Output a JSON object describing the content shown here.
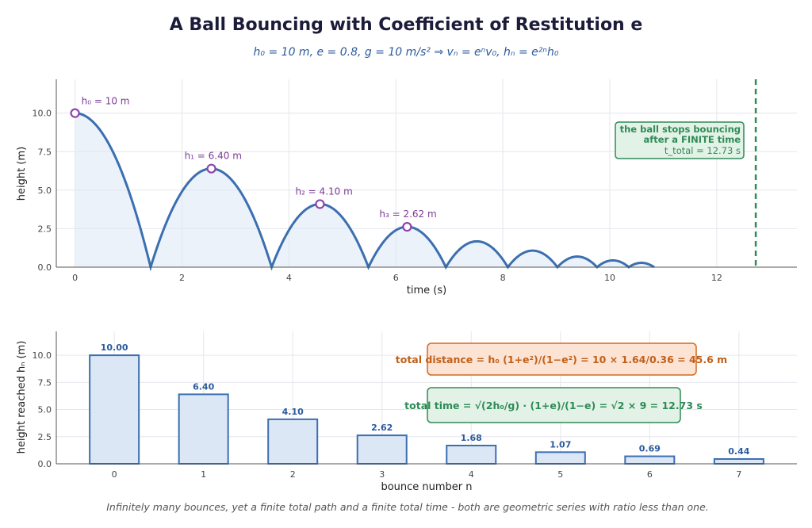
{
  "header": {
    "title": "A Ball Bouncing with Coefficient of Restitution e",
    "subtitle": "h₀ = 10 m,  e = 0.8,  g = 10 m/s²    ⇒    vₙ = eⁿv₀,   hₙ = e²ⁿh₀"
  },
  "colors": {
    "curve": "#3b6fb0",
    "fill": "#dde8f6",
    "peak": "#8e44ad",
    "green": "#2e8b57",
    "orange": "#d2691e"
  },
  "chart_data": [
    {
      "type": "line",
      "xlabel": "time  (s)",
      "ylabel": "height  (m)",
      "xlim": [
        -0.35,
        13.5
      ],
      "ylim": [
        0,
        12.2
      ],
      "xticks": [
        "0",
        "2",
        "4",
        "6",
        "8",
        "10",
        "12"
      ],
      "yticks": [
        "0.0",
        "2.5",
        "5.0",
        "7.5",
        "10.0"
      ],
      "grid": true,
      "params": {
        "h0": 10,
        "e": 0.8,
        "g": 10
      },
      "peaks": [
        {
          "t": 0,
          "h": 10,
          "label": "h₀ = 10 m"
        },
        {
          "t": 2.55,
          "h": 6.4,
          "label": "h₁ = 6.40 m"
        },
        {
          "t": 4.58,
          "h": 4.096,
          "label": "h₂ = 4.10 m"
        },
        {
          "t": 6.21,
          "h": 2.62,
          "label": "h₃ = 2.62 m"
        }
      ],
      "stop_time": 12.73,
      "annotation": {
        "line1": "the ball stops bouncing",
        "line2": "after a FINITE time",
        "line3": "t_total = 12.73 s"
      }
    },
    {
      "type": "bar",
      "xlabel": "bounce number n",
      "ylabel": "height reached  hₙ  (m)",
      "categories": [
        "0",
        "1",
        "2",
        "3",
        "4",
        "5",
        "6",
        "7"
      ],
      "values": [
        10.0,
        6.4,
        4.1,
        2.62,
        1.68,
        1.07,
        0.69,
        0.44
      ],
      "value_labels": [
        "10.00",
        "6.40",
        "4.10",
        "2.62",
        "1.68",
        "1.07",
        "0.69",
        "0.44"
      ],
      "ylim": [
        0,
        12.2
      ],
      "yticks": [
        "0.0",
        "2.5",
        "5.0",
        "7.5",
        "10.0"
      ],
      "grid": true,
      "boxes": {
        "distance": "total distance   = h₀ (1+e²)/(1−e²) = 10 × 1.64/0.36 = 45.6 m",
        "time": "total time   = √(2h₀/g) · (1+e)/(1−e) = √2 × 9 = 12.73 s"
      }
    }
  ],
  "footer": "Infinitely many bounces, yet a finite total path and a finite total time - both are geometric series with ratio less than one."
}
